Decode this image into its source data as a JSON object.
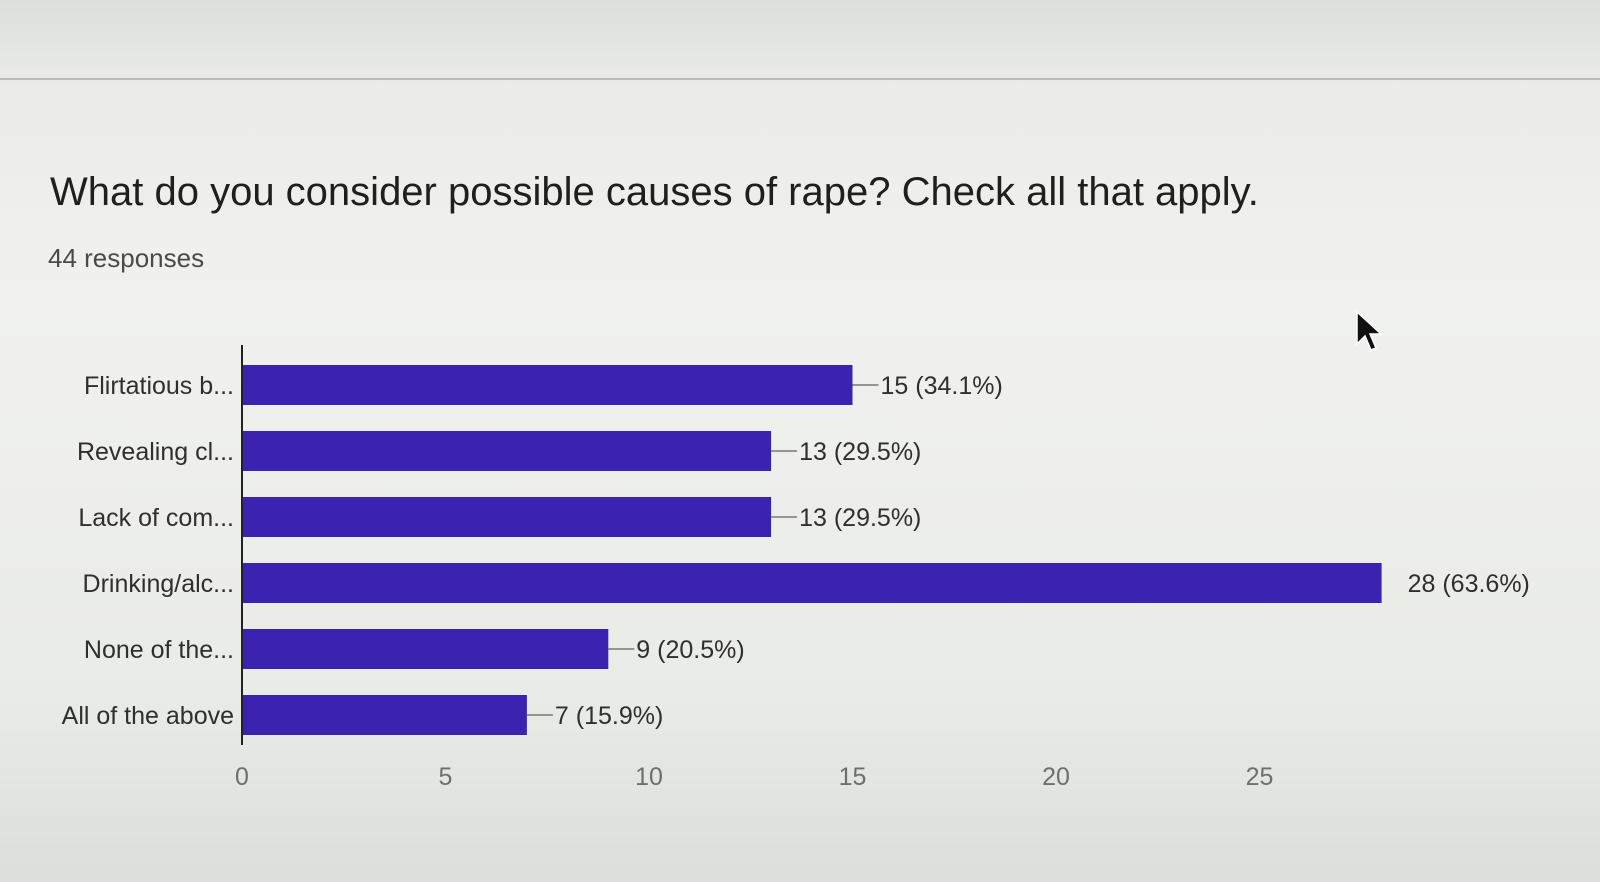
{
  "question": {
    "title": "What do you consider possible causes of rape? Check all that apply.",
    "responses": "44 responses"
  },
  "chart_data": {
    "type": "bar",
    "orientation": "horizontal",
    "categories": [
      "Flirtatious b...",
      "Revealing cl...",
      "Lack of com...",
      "Drinking/alc...",
      "None of the...",
      "All of the above"
    ],
    "values": [
      15,
      13,
      13,
      28,
      9,
      7
    ],
    "data_labels": [
      "15 (34.1%)",
      "13 (29.5%)",
      "13 (29.5%)",
      "28 (63.6%)",
      "9 (20.5%)",
      "7 (15.9%)"
    ],
    "xlim": [
      0,
      28
    ],
    "xticks": [
      0,
      5,
      10,
      15,
      20,
      25
    ],
    "bar_color": "#3b22b0",
    "grid": false,
    "legend": "none"
  }
}
